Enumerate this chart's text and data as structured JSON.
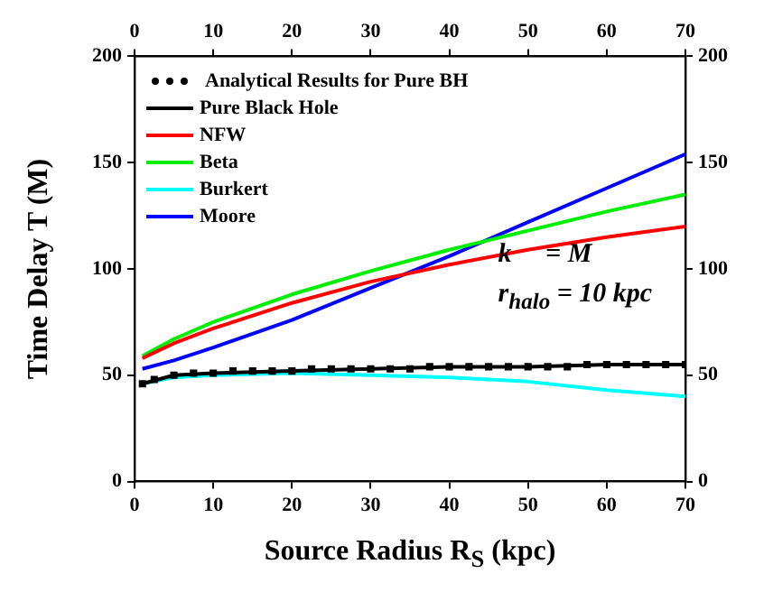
{
  "chart_data": {
    "type": "line",
    "xlabel": "Source Radius R$_{S}$ (kpc)",
    "ylabel": "Time Delay   T (M)",
    "x": [
      1,
      5,
      10,
      20,
      30,
      40,
      50,
      60,
      70
    ],
    "xlim": [
      0,
      70
    ],
    "xticks": [
      0,
      10,
      20,
      30,
      40,
      50,
      60,
      70
    ],
    "x2lim": [
      0,
      70
    ],
    "x2ticks": [
      0,
      10,
      20,
      30,
      40,
      50,
      60,
      70
    ],
    "ylim": [
      0,
      200
    ],
    "yticks": [
      0,
      50,
      100,
      150,
      200
    ],
    "y2lim": [
      0,
      200
    ],
    "y2ticks": [
      0,
      50,
      100,
      150,
      200
    ],
    "legend": "top left",
    "annotations": [
      "k     = M",
      "r$_{halo}$ = 10 kpc"
    ],
    "series": [
      {
        "name": "Analytical Results for Pure BH",
        "color": "#000000",
        "type": "scatter",
        "marker": "square",
        "x": [
          1,
          2.5,
          5,
          7.5,
          10,
          12.5,
          15,
          17.5,
          20,
          22.5,
          25,
          27.5,
          30,
          32.5,
          35,
          37.5,
          40,
          42.5,
          45,
          47.5,
          50,
          52.5,
          55,
          57.5,
          60,
          62.5,
          65,
          67.5,
          70
        ],
        "values": [
          46,
          48,
          50,
          51,
          51,
          52,
          52,
          52,
          52,
          53,
          53,
          53,
          53,
          53,
          53,
          54,
          54,
          54,
          54,
          54,
          54,
          54,
          54,
          55,
          55,
          55,
          55,
          55,
          55
        ]
      },
      {
        "name": "Pure Black Hole",
        "color": "#000000",
        "values": [
          46,
          50,
          51,
          52,
          53,
          54,
          54,
          55,
          55
        ]
      },
      {
        "name": "NFW",
        "color": "#ff0000",
        "values": [
          58,
          65,
          72,
          84,
          94,
          102,
          109,
          115,
          120
        ]
      },
      {
        "name": "Beta",
        "color": "#00ee00",
        "values": [
          59,
          67,
          75,
          88,
          99,
          109,
          118,
          127,
          135
        ]
      },
      {
        "name": "Burkert",
        "color": "#00ffff",
        "values": [
          46,
          49,
          50,
          51,
          50,
          49,
          47,
          43,
          40
        ]
      },
      {
        "name": "Moore",
        "color": "#0000ff",
        "values": [
          53,
          57,
          63,
          76,
          91,
          106,
          122,
          138,
          154
        ]
      }
    ]
  }
}
